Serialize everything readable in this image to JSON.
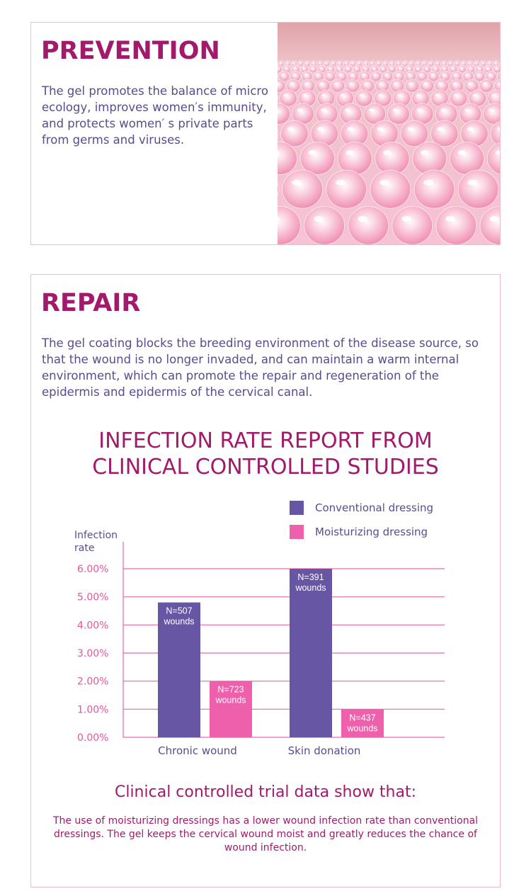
{
  "prevention": {
    "heading": "PREVENTION",
    "text": "The gel promotes the balance of micro ecology, improves women′s immunity, and protects women′ s private parts from germs and viruses."
  },
  "repair": {
    "heading": "REPAIR",
    "text": "The gel coating blocks the breeding environment of the disease source, so that the wound is no longer invaded, and can maintain a warm internal environment, which can promote the repair and regeneration of the epidermis and epidermis of the cervical canal."
  },
  "chart_title": {
    "line1": "INFECTION RATE REPORT FROM",
    "line2": "CLINICAL CONTROLLED STUDIES"
  },
  "chart_data": {
    "type": "bar",
    "title": "INFECTION RATE REPORT FROM CLINICAL CONTROLLED STUDIES",
    "ylabel_line1": "Infection",
    "ylabel_line2": "rate",
    "xlabel": "",
    "categories": [
      "Chronic wound",
      "Skin donation"
    ],
    "ylim": [
      0,
      6
    ],
    "yticks": [
      "0.00%",
      "1.00%",
      "2.00%",
      "3.00%",
      "4.00%",
      "5.00%",
      "6.00%"
    ],
    "grid": true,
    "legend_position": "top-right",
    "series": [
      {
        "name": "Conventional dressing",
        "color": "#6656a3",
        "values": [
          4.8,
          6.0
        ],
        "labels": [
          [
            "N=507",
            "wounds"
          ],
          [
            "N=391",
            "wounds"
          ]
        ]
      },
      {
        "name": "Moisturizing dressing",
        "color": "#ee5fac",
        "values": [
          2.0,
          1.0
        ],
        "labels": [
          [
            "N=723",
            "wounds"
          ],
          [
            "N=437",
            "wounds"
          ]
        ]
      }
    ]
  },
  "summary": {
    "heading": "Clinical controlled trial data show that:",
    "text": "The use of moisturizing dressings has a lower wound infection rate than conventional dressings. The gel keeps the cervical wound moist and greatly reduces the chance of wound infection."
  },
  "colors": {
    "accent": "#a21a6c",
    "body_text": "#5b4b8e",
    "tick_text": "#e8559c",
    "gridline": "#e46aa6",
    "panel_border": "#f2b8d2"
  }
}
